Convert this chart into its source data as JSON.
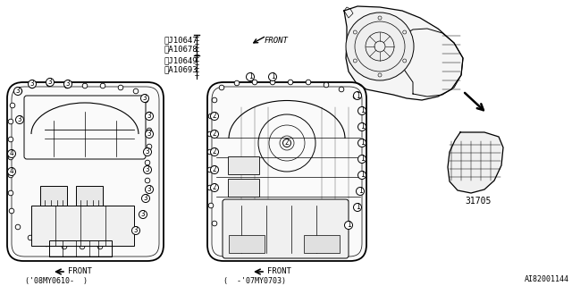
{
  "bg_color": "#ffffff",
  "line_color": "#000000",
  "diagram_id": "AI82001144",
  "part_number": "31705",
  "label_1a": "①J10647",
  "label_1b": "③A10678",
  "label_2a": "②J10649",
  "label_2b": "④A10693",
  "front_label": "FRONT",
  "caption_left": "('08MY0610-  )",
  "caption_right": "(  -'07MY0703)"
}
